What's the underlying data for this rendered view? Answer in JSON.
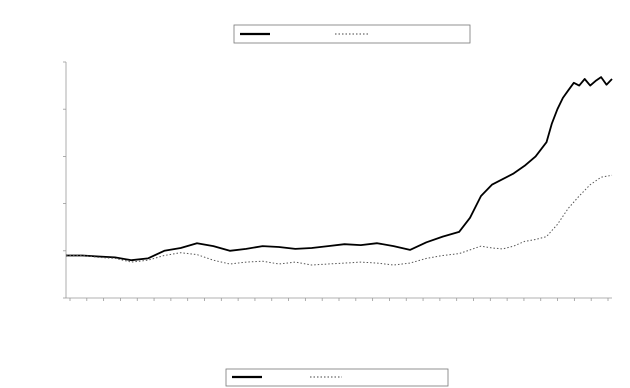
{
  "chart_data": {
    "type": "line",
    "title": "",
    "xlabel": "",
    "ylabel": "",
    "grid": false,
    "legend_placement": "top",
    "x_tick_count": 33,
    "x_tick_labels": [],
    "y_ticks": [
      "",
      "",
      "",
      "",
      "",
      ""
    ],
    "y_tick_values": [
      -0.5,
      0.0,
      0.5,
      1.0,
      1.5,
      2.0
    ],
    "ylim": [
      -0.5,
      2.0
    ],
    "xlim": [
      0,
      100
    ],
    "series": [
      {
        "name": "",
        "style": "solid",
        "color": "#000000",
        "x": [
          0,
          3,
          6,
          9,
          12,
          15,
          18,
          21,
          24,
          27,
          30,
          33,
          36,
          39,
          42,
          45,
          48,
          51,
          54,
          57,
          60,
          63,
          66,
          69,
          72,
          74,
          76,
          78,
          80,
          82,
          84,
          86,
          88,
          89,
          90,
          91,
          92,
          93,
          94,
          95,
          96,
          97,
          98,
          99,
          100
        ],
        "values": [
          -0.05,
          -0.05,
          -0.06,
          -0.07,
          -0.1,
          -0.08,
          0.0,
          0.03,
          0.08,
          0.05,
          0.0,
          0.02,
          0.05,
          0.04,
          0.02,
          0.03,
          0.05,
          0.07,
          0.06,
          0.08,
          0.05,
          0.01,
          0.09,
          0.15,
          0.2,
          0.35,
          0.58,
          0.7,
          0.76,
          0.82,
          0.9,
          1.0,
          1.15,
          1.35,
          1.5,
          1.62,
          1.7,
          1.78,
          1.75,
          1.82,
          1.75,
          1.8,
          1.84,
          1.76,
          1.82
        ]
      },
      {
        "name": "",
        "style": "dotted",
        "color": "#555555",
        "x": [
          0,
          3,
          6,
          9,
          12,
          15,
          18,
          21,
          24,
          27,
          30,
          33,
          36,
          39,
          42,
          45,
          48,
          51,
          54,
          57,
          60,
          63,
          66,
          69,
          72,
          74,
          76,
          78,
          80,
          82,
          84,
          86,
          88,
          90,
          92,
          94,
          96,
          98,
          100
        ],
        "values": [
          -0.05,
          -0.05,
          -0.07,
          -0.08,
          -0.12,
          -0.1,
          -0.05,
          -0.02,
          -0.04,
          -0.1,
          -0.14,
          -0.12,
          -0.11,
          -0.14,
          -0.12,
          -0.15,
          -0.14,
          -0.13,
          -0.12,
          -0.13,
          -0.15,
          -0.13,
          -0.08,
          -0.05,
          -0.03,
          0.01,
          0.05,
          0.03,
          0.02,
          0.05,
          0.1,
          0.12,
          0.15,
          0.28,
          0.45,
          0.58,
          0.7,
          0.78,
          0.8
        ]
      }
    ]
  }
}
